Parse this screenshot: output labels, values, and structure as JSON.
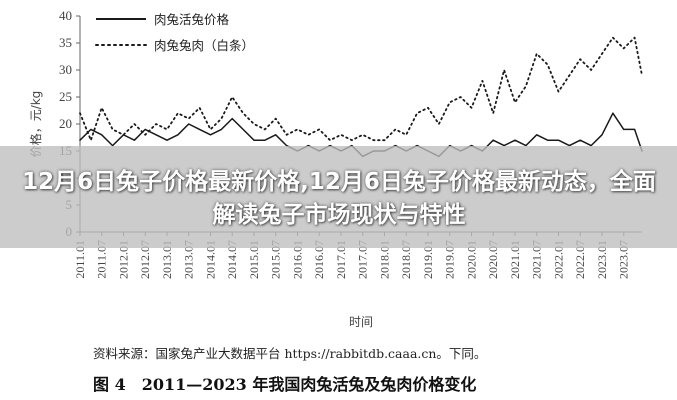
{
  "headline": "12月6日兔子价格最新价格,12月6日兔子价格最新动态，全面解读兔子市场现状与特性",
  "source_note": "资料来源：国家兔产业大数据平台 https://rabbitdb.caaa.cn。下同。",
  "caption": "图 4　2011—2023 年我国肉兔活兔及兔肉价格变化",
  "chart_data": {
    "type": "line",
    "title": "",
    "xlabel": "时间",
    "ylabel": "价格，元/kg",
    "ylim": [
      0,
      40
    ],
    "yticks": [
      0,
      5,
      10,
      15,
      20,
      25,
      30,
      35,
      40
    ],
    "xticks": [
      "2011.01",
      "2011.07",
      "2012.01",
      "2012.07",
      "2013.01",
      "2013.07",
      "2014.01",
      "2014.07",
      "2015.01",
      "2015.07",
      "2016.01",
      "2016.07",
      "2017.01",
      "2017.07",
      "2018.01",
      "2018.07",
      "2019.01",
      "2019.07",
      "2020.01",
      "2020.07",
      "2021.01",
      "2021.07",
      "2022.01",
      "2022.07",
      "2023.01",
      "2023.07"
    ],
    "legend_position": "top-left",
    "grid": false,
    "series": [
      {
        "name": "肉兔活兔价格",
        "style": "solid",
        "color": "#1a1a1a",
        "x": [
          2011.0,
          2011.25,
          2011.5,
          2011.75,
          2012.0,
          2012.25,
          2012.5,
          2012.75,
          2013.0,
          2013.25,
          2013.5,
          2013.75,
          2014.0,
          2014.25,
          2014.5,
          2014.75,
          2015.0,
          2015.25,
          2015.5,
          2015.75,
          2016.0,
          2016.25,
          2016.5,
          2016.75,
          2017.0,
          2017.25,
          2017.5,
          2017.75,
          2018.0,
          2018.25,
          2018.5,
          2018.75,
          2019.0,
          2019.25,
          2019.5,
          2019.75,
          2020.0,
          2020.25,
          2020.5,
          2020.75,
          2021.0,
          2021.25,
          2021.5,
          2021.75,
          2022.0,
          2022.25,
          2022.5,
          2022.75,
          2023.0,
          2023.25,
          2023.5,
          2023.75,
          2023.92
        ],
        "y": [
          17,
          19,
          18,
          16,
          18,
          17,
          19,
          18,
          17,
          18,
          20,
          19,
          18,
          19,
          21,
          19,
          17,
          17,
          18,
          16,
          15,
          16,
          15,
          16,
          15,
          16,
          14,
          15,
          15,
          16,
          15,
          16,
          15,
          14,
          16,
          15,
          16,
          15,
          17,
          16,
          17,
          16,
          18,
          17,
          17,
          16,
          17,
          16,
          18,
          22,
          19,
          19,
          15
        ]
      },
      {
        "name": "肉兔兔肉（白条）",
        "style": "dotted",
        "color": "#1a1a1a",
        "x": [
          2011.0,
          2011.25,
          2011.5,
          2011.75,
          2012.0,
          2012.25,
          2012.5,
          2012.75,
          2013.0,
          2013.25,
          2013.5,
          2013.75,
          2014.0,
          2014.25,
          2014.5,
          2014.75,
          2015.0,
          2015.25,
          2015.5,
          2015.75,
          2016.0,
          2016.25,
          2016.5,
          2016.75,
          2017.0,
          2017.25,
          2017.5,
          2017.75,
          2018.0,
          2018.25,
          2018.5,
          2018.75,
          2019.0,
          2019.25,
          2019.5,
          2019.75,
          2020.0,
          2020.25,
          2020.5,
          2020.75,
          2021.0,
          2021.25,
          2021.5,
          2021.75,
          2022.0,
          2022.25,
          2022.5,
          2022.75,
          2023.0,
          2023.25,
          2023.5,
          2023.75,
          2023.92
        ],
        "y": [
          22,
          17,
          23,
          19,
          18,
          20,
          18,
          20,
          19,
          22,
          21,
          23,
          19,
          21,
          25,
          22,
          20,
          19,
          21,
          18,
          19,
          18,
          19,
          17,
          18,
          17,
          18,
          17,
          17,
          19,
          18,
          22,
          23,
          20,
          24,
          25,
          23,
          28,
          22,
          30,
          24,
          27,
          33,
          31,
          26,
          29,
          32,
          30,
          33,
          36,
          34,
          36,
          29
        ]
      }
    ]
  }
}
